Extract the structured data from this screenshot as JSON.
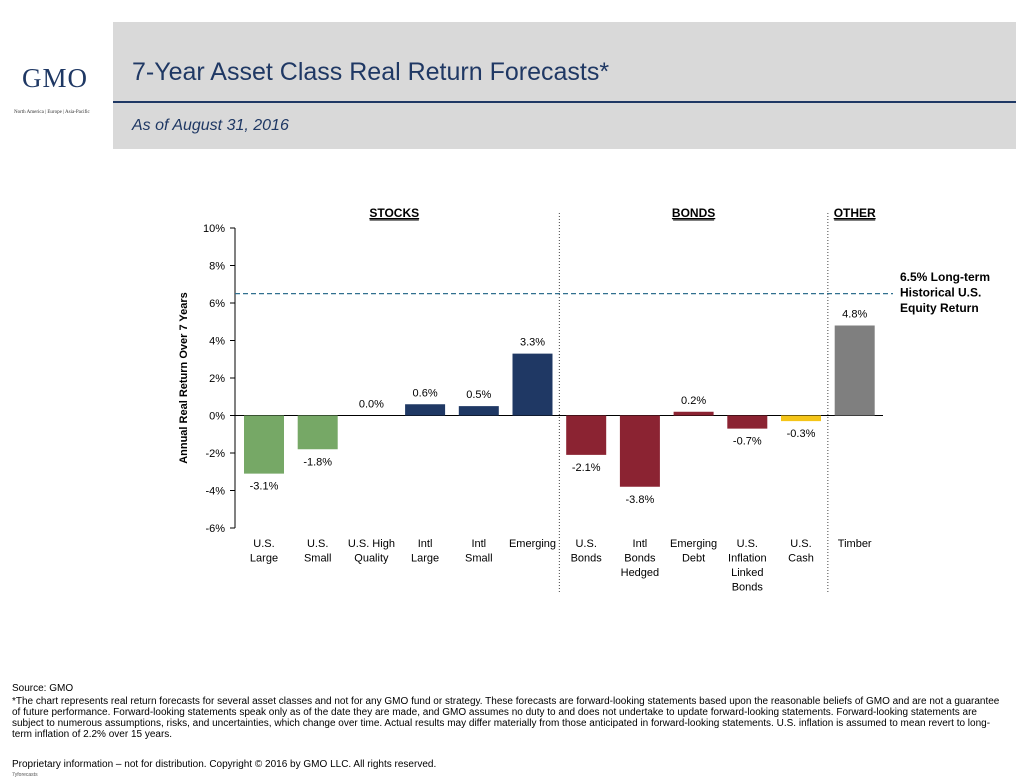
{
  "header": {
    "logo": "GMO",
    "logo_regions": "North America | Europe | Asia-Pacific",
    "title": "7-Year Asset Class Real Return Forecasts*",
    "subtitle": "As of August 31, 2016"
  },
  "colors": {
    "navy": "#1f3864",
    "green": "#76a866",
    "maroon": "#8b2332",
    "yellow": "#f5c518",
    "gray": "#7f7f7f",
    "dashed_line": "#31708f",
    "header_band": "#d9d9d9"
  },
  "chart_data": {
    "type": "bar",
    "ylabel": "Annual Real Return Over 7 Years",
    "ylim": [
      -6,
      10
    ],
    "yticks": [
      10,
      8,
      6,
      4,
      2,
      0,
      -2,
      -4,
      -6
    ],
    "ytick_labels": [
      "10%",
      "8%",
      "6%",
      "4%",
      "2%",
      "0%",
      "-2%",
      "-4%",
      "-6%"
    ],
    "grid": false,
    "groups": [
      {
        "label": "STOCKS",
        "start": 0,
        "end": 5
      },
      {
        "label": "BONDS",
        "start": 6,
        "end": 10
      },
      {
        "label": "OTHER",
        "start": 11,
        "end": 11
      }
    ],
    "categories": [
      "U.S.\nLarge",
      "U.S.\nSmall",
      "U.S. High\nQuality",
      "Intl\nLarge",
      "Intl\nSmall",
      "Emerging",
      "U.S.\nBonds",
      "Intl\nBonds\nHedged",
      "Emerging\nDebt",
      "U.S.\nInflation\nLinked\nBonds",
      "U.S.\nCash",
      "Timber"
    ],
    "values": [
      -3.1,
      -1.8,
      0.0,
      0.6,
      0.5,
      3.3,
      -2.1,
      -3.8,
      0.2,
      -0.7,
      -0.3,
      4.8
    ],
    "data_labels": [
      "-3.1%",
      "-1.8%",
      "0.0%",
      "0.6%",
      "0.5%",
      "3.3%",
      "-2.1%",
      "-3.8%",
      "0.2%",
      "-0.7%",
      "-0.3%",
      "4.8%"
    ],
    "bar_colors": [
      "#76a866",
      "#76a866",
      "#1f3864",
      "#1f3864",
      "#1f3864",
      "#1f3864",
      "#8b2332",
      "#8b2332",
      "#8b2332",
      "#8b2332",
      "#f5c518",
      "#7f7f7f"
    ],
    "reference_line": {
      "value": 6.5,
      "label": [
        "6.5% Long-term",
        "Historical U.S.",
        "Equity Return"
      ],
      "style": "dashed"
    }
  },
  "footer": {
    "source": "Source: GMO",
    "note": "*The chart represents real return forecasts for several asset classes and not for any GMO fund or strategy.  These forecasts are forward-looking statements based upon the reasonable beliefs of GMO and are not a guarantee of future performance.  Forward-looking statements speak only as of the date they are made, and GMO assumes no duty to and does not undertake to update forward-looking statements.  Forward-looking statements are subject to numerous assumptions, risks, and uncertainties, which change over time.  Actual results may differ materially from those anticipated in forward-looking statements. U.S. inflation is assumed to mean revert to long-term inflation of 2.2% over 15 years.",
    "proprietary": "Proprietary information – not for distribution.  Copyright © 2016 by GMO LLC.  All rights reserved.",
    "file_tag": "7yforecasts"
  }
}
